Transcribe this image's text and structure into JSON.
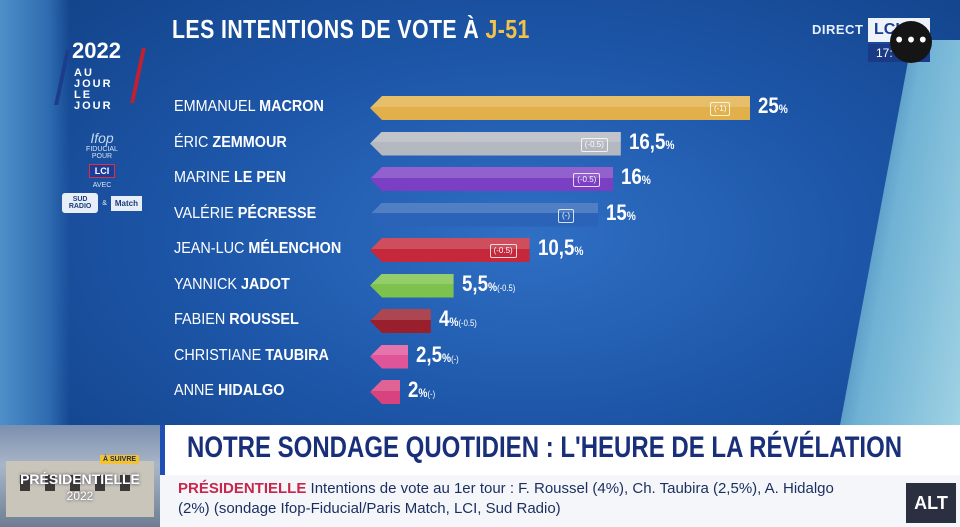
{
  "title_main": "LES INTENTIONS DE VOTE À",
  "title_highlight": "J-51",
  "logo": {
    "year": "2022",
    "line1": "AU JOUR",
    "line2": "LE JOUR"
  },
  "sponsors": {
    "ifop": "Ifop",
    "ifop_sub": "FIDUCIAL",
    "pour": "POUR",
    "lci": "LCI",
    "avec": "AVEC",
    "sud_radio": "SUD RADIO",
    "and": "&",
    "paris_match": "Match"
  },
  "channel": {
    "direct": "DIRECT",
    "logo": "LCI",
    "time": "17:"
  },
  "more_button": "•••",
  "chart_data": {
    "type": "bar",
    "title": "LES INTENTIONS DE VOTE À J-51",
    "candidates": [
      {
        "first": "EMMANUEL",
        "last": "MACRON",
        "value": 25,
        "label": "25",
        "change": "(-1)",
        "color": "#e2b04a"
      },
      {
        "first": "ÉRIC",
        "last": "ZEMMOUR",
        "value": 16.5,
        "label": "16,5",
        "change": "(-0.5)",
        "color": "#b4b8c0"
      },
      {
        "first": "MARINE",
        "last": "LE PEN",
        "value": 16,
        "label": "16",
        "change": "(-0.5)",
        "color": "#7b3fc4"
      },
      {
        "first": "VALÉRIE",
        "last": "PÉCRESSE",
        "value": 15,
        "label": "15",
        "change": "(-)",
        "color": "#2a63b8"
      },
      {
        "first": "JEAN-LUC",
        "last": "MÉLENCHON",
        "value": 10.5,
        "label": "10,5",
        "change": "(-0.5)",
        "color": "#c4283a"
      },
      {
        "first": "YANNICK",
        "last": "JADOT",
        "value": 5.5,
        "label": "5,5",
        "change": "(-0.5)",
        "color": "#7cc24c"
      },
      {
        "first": "FABIEN",
        "last": "ROUSSEL",
        "value": 4,
        "label": "4",
        "change": "(-0.5)",
        "color": "#9a1f2c"
      },
      {
        "first": "CHRISTIANE",
        "last": "TAUBIRA",
        "value": 2.5,
        "label": "2,5",
        "change": "(-)",
        "color": "#e0559a"
      },
      {
        "first": "ANNE",
        "last": "HIDALGO",
        "value": 2,
        "label": "2",
        "change": "(-)",
        "color": "#d8427e"
      }
    ],
    "unit": "%",
    "xlim": [
      0,
      25
    ]
  },
  "ticker": {
    "thumb_badge": "À SUIVRE",
    "thumb_title": "PRÉSIDENTIELLE",
    "thumb_year": "2022",
    "headline": "NOTRE SONDAGE QUOTIDIEN : L'HEURE DE LA RÉVÉLATION",
    "tag": "PRÉSIDENTIELLE",
    "text": "Intentions de vote au 1er tour : F. Roussel (4%), Ch. Taubira (2,5%), A. Hidalgo (2%) (sondage Ifop-Fiducial/Paris Match, LCI, Sud Radio)",
    "alt": "ALT"
  }
}
